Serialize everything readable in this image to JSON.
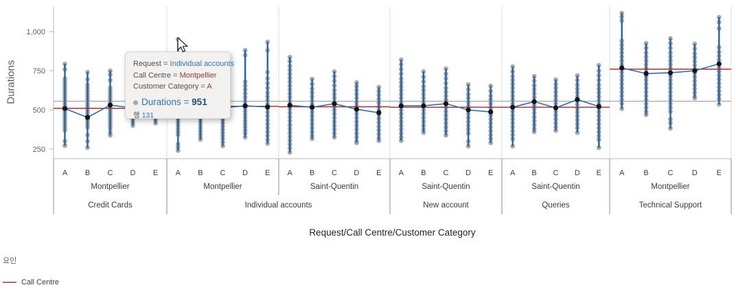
{
  "chart_data": {
    "type": "scatter",
    "subtype": "grouped-strip-dot-plot-with-means",
    "ylabel": "Durations",
    "xlabel": "Request/Call Centre/Customer Category",
    "y_axis": {
      "tick_values": [
        250,
        500,
        750,
        1000
      ],
      "tick_labels": [
        "250",
        "500",
        "750",
        "1,000"
      ],
      "ylim": [
        185,
        1165
      ]
    },
    "grand_mean": 555,
    "categories": [
      "A",
      "B",
      "C",
      "D",
      "E"
    ],
    "legend": {
      "title": "요인",
      "items": [
        {
          "label": "Call Centre",
          "color": "#AE6E6C"
        }
      ]
    },
    "panels": [
      {
        "request": "Credit Cards",
        "call_centre": "Montpellier",
        "red_line": 510,
        "columns": [
          {
            "category": "A",
            "mean": 509,
            "dots": [
              794,
              760,
              700,
              685,
              670,
              655,
              640,
              625,
              610,
              595,
              580,
              565,
              550,
              535,
              520,
              505,
              490,
              475,
              460,
              445,
              430,
              415,
              400,
              385,
              370,
              300,
              272
            ]
          },
          {
            "category": "B",
            "mean": 452,
            "dots": [
              741,
              695,
              660,
              640,
              620,
              600,
              585,
              570,
              555,
              540,
              525,
              510,
              495,
              480,
              465,
              450,
              435,
              420,
              405,
              390,
              340,
              300,
              259
            ]
          },
          {
            "category": "C",
            "mean": 531,
            "dots": [
              750,
              725,
              690,
              640,
              620,
              605,
              590,
              575,
              560,
              545,
              530,
              515,
              500,
              485,
              470,
              455,
              440,
              425,
              410,
              395,
              380,
              355,
              338
            ]
          },
          {
            "category": "D",
            "mean": 512,
            "dots": [
              700,
              650,
              600,
              560,
              540,
              520,
              500,
              480,
              460,
              440,
              420,
              400
            ]
          },
          {
            "category": "E",
            "mean": 507,
            "dots": [
              720,
              660,
              620,
              590,
              565,
              540,
              515,
              495,
              475,
              455,
              435,
              415
            ]
          }
        ]
      },
      {
        "request": "Individual accounts",
        "call_centre": "Montpellier",
        "red_line": 523,
        "columns": [
          {
            "category": "A",
            "mean": 516,
            "dots": [
              951,
              720,
              700,
              680,
              660,
              640,
              620,
              600,
              580,
              560,
              540,
              520,
              500,
              480,
              460,
              440,
              420,
              400,
              380,
              360,
              342,
              281,
              262,
              240
            ]
          },
          {
            "category": "B",
            "mean": 502,
            "dots": [
              730,
              690,
              650,
              620,
              595,
              570,
              545,
              520,
              495,
              470,
              445,
              425,
              405,
              385,
              365,
              345,
              325,
              311
            ]
          },
          {
            "category": "C",
            "mean": 514,
            "dots": [
              740,
              700,
              665,
              635,
              605,
              580,
              555,
              530,
              505,
              480,
              455,
              435,
              415,
              395,
              375,
              355,
              335,
              315,
              295,
              270
            ]
          },
          {
            "category": "D",
            "mean": 526,
            "dots": [
              881,
              850,
              680,
              655,
              630,
              605,
              580,
              555,
              530,
              510,
              490,
              470,
              450,
              430,
              410,
              390,
              370,
              350,
              325
            ]
          },
          {
            "category": "E",
            "mean": 519,
            "dots": [
              934,
              880,
              740,
              700,
              670,
              640,
              610,
              585,
              560,
              535,
              510,
              485,
              460,
              435,
              410,
              385,
              360,
              335,
              310,
              285
            ]
          }
        ]
      },
      {
        "request": "Individual accounts",
        "call_centre": "Saint-Quentin",
        "red_line": 520,
        "columns": [
          {
            "category": "A",
            "mean": 530,
            "dots": [
              837,
              810,
              780,
              755,
              730,
              705,
              680,
              655,
              630,
              605,
              580,
              555,
              530,
              505,
              480,
              455,
              430,
              405,
              380,
              355,
              330,
              305,
              280,
              255,
              228
            ]
          },
          {
            "category": "B",
            "mean": 517,
            "dots": [
              697,
              665,
              635,
              610,
              585,
              560,
              535,
              510,
              485,
              460,
              435,
              410,
              385,
              360,
              335,
              316
            ]
          },
          {
            "category": "C",
            "mean": 540,
            "dots": [
              745,
              715,
              685,
              655,
              625,
              600,
              575,
              550,
              525,
              500,
              475,
              450,
              425,
              400,
              375,
              350,
              325
            ]
          },
          {
            "category": "D",
            "mean": 504,
            "dots": [
              675,
              650,
              625,
              600,
              575,
              550,
              525,
              500,
              475,
              450,
              425,
              400,
              375,
              350,
              325,
              300,
              290
            ]
          },
          {
            "category": "E",
            "mean": 482,
            "dots": [
              645,
              620,
              595,
              570,
              545,
              520,
              495,
              470,
              445,
              420,
              395,
              370,
              345,
              320,
              303
            ]
          }
        ]
      },
      {
        "request": "New account",
        "call_centre": "Saint-Quentin",
        "red_line": 517,
        "columns": [
          {
            "category": "A",
            "mean": 526,
            "dots": [
              820,
              790,
              760,
              730,
              700,
              675,
              650,
              625,
              600,
              575,
              550,
              525,
              500,
              475,
              450,
              425,
              400,
              375,
              350,
              325,
              303
            ]
          },
          {
            "category": "B",
            "mean": 526,
            "dots": [
              745,
              710,
              680,
              650,
              625,
              600,
              575,
              550,
              525,
              500,
              475,
              450,
              425,
              400,
              375,
              355
            ]
          },
          {
            "category": "C",
            "mean": 540,
            "dots": [
              763,
              730,
              700,
              670,
              640,
              615,
              590,
              565,
              540,
              515,
              490,
              465,
              440,
              415,
              390,
              365,
              338
            ]
          },
          {
            "category": "D",
            "mean": 500,
            "dots": [
              662,
              630,
              600,
              575,
              550,
              525,
              500,
              475,
              450,
              425,
              400,
              375,
              350,
              300,
              268
            ]
          },
          {
            "category": "E",
            "mean": 487,
            "dots": [
              653,
              620,
              590,
              565,
              540,
              515,
              490,
              465,
              440,
              415,
              390,
              365,
              340,
              315,
              290
            ]
          }
        ]
      },
      {
        "request": "Queries",
        "call_centre": "Saint-Quentin",
        "red_line": 517,
        "columns": [
          {
            "category": "A",
            "mean": 517,
            "dots": [
              776,
              745,
              715,
              690,
              665,
              640,
              615,
              590,
              565,
              540,
              515,
              490,
              465,
              440,
              415,
              390,
              365,
              340,
              315,
              268
            ]
          },
          {
            "category": "B",
            "mean": 553,
            "dots": [
              715,
              685,
              655,
              630,
              605,
              580,
              555,
              530,
              505,
              480,
              455,
              430,
              405,
              380,
              360
            ]
          },
          {
            "category": "C",
            "mean": 513,
            "dots": [
              693,
              665,
              640,
              615,
              590,
              565,
              540,
              515,
              490,
              465,
              440,
              415,
              390,
              368
            ]
          },
          {
            "category": "D",
            "mean": 566,
            "dots": [
              719,
              690,
              660,
              635,
              610,
              585,
              560,
              535,
              510,
              485,
              460,
              435,
              410,
              385,
              355
            ]
          },
          {
            "category": "E",
            "mean": 522,
            "dots": [
              785,
              750,
              720,
              690,
              660,
              635,
              610,
              585,
              560,
              535,
              510,
              485,
              460,
              435,
              410,
              385,
              360,
              335,
              310,
              259
            ]
          }
        ]
      },
      {
        "request": "Technical Support",
        "call_centre": "Montpellier",
        "red_line": 760,
        "columns": [
          {
            "category": "A",
            "mean": 768,
            "dots": [
              1118,
              1095,
              1070,
              940,
              915,
              890,
              865,
              840,
              815,
              790,
              765,
              740,
              715,
              690,
              665,
              640,
              615,
              590,
              565,
              540,
              508
            ]
          },
          {
            "category": "B",
            "mean": 732,
            "dots": [
              925,
              895,
              865,
              840,
              815,
              790,
              765,
              740,
              715,
              690,
              665,
              640,
              615,
              590,
              565,
              540,
              515,
              490,
              469
            ]
          },
          {
            "category": "C",
            "mean": 737,
            "dots": [
              956,
              925,
              895,
              865,
              840,
              815,
              790,
              765,
              740,
              715,
              690,
              665,
              640,
              615,
              590,
              565,
              540,
              515,
              490,
              440,
              415,
              382
            ]
          },
          {
            "category": "D",
            "mean": 750,
            "dots": [
              921,
              890,
              860,
              835,
              810,
              785,
              760,
              735,
              710,
              685,
              660,
              635,
              610,
              585,
              575
            ]
          },
          {
            "category": "E",
            "mean": 794,
            "dots": [
              1092,
              1060,
              1020,
              900,
              870,
              845,
              820,
              795,
              770,
              745,
              720,
              695,
              670,
              645,
              620,
              595,
              570,
              535
            ]
          }
        ]
      },
      {
        "request": "",
        "call_centre": "",
        "red_line": 0,
        "columns": []
      }
    ],
    "colors": {
      "dot_gray": "#A9A9A9",
      "mean_black": "#151515",
      "range_blue": "#1F63A8",
      "line_blue": "#2B6CAD",
      "factor_red": "#A33B3B",
      "grand_gray": "#ABABAB",
      "axis_text": "#605E5C",
      "label_text": "#3B3A39",
      "plot_line": "#B9B7B5",
      "divider": "#8C8C8C",
      "separator": "#DCDADA"
    }
  },
  "tooltip": {
    "rows": [
      {
        "label": "Request = ",
        "value": "Individual accounts"
      },
      {
        "label": "Call Centre = ",
        "value": "Montpellier"
      },
      {
        "label": "Customer Category = ",
        "value": "A"
      }
    ],
    "row_value_colors": [
      "#2E75B6",
      "#8C3A38",
      "#8C3A38"
    ],
    "measure_label": "Durations",
    "equals": " = ",
    "measure_value": "951",
    "row_info_label": "행",
    "row_info_value": "131"
  }
}
